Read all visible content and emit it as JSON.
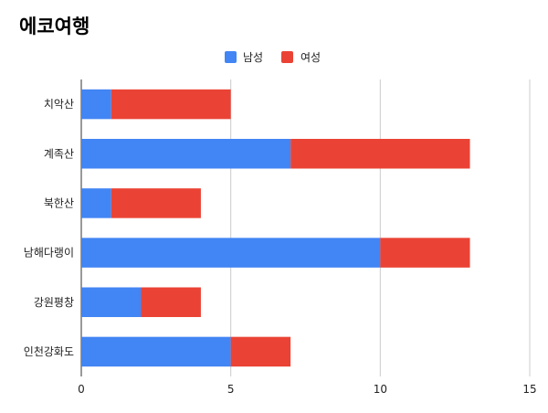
{
  "chart_data": {
    "type": "bar",
    "orientation": "horizontal",
    "stacked": true,
    "title": "에코여행",
    "xlabel": "",
    "ylabel": "",
    "categories": [
      "치악산",
      "계족산",
      "북한산",
      "남해다랭이",
      "강원평창",
      "인천강화도"
    ],
    "series": [
      {
        "name": "남성",
        "color": "#4285f4",
        "values": [
          1,
          7,
          1,
          10,
          2,
          5
        ]
      },
      {
        "name": "여성",
        "color": "#ea4335",
        "values": [
          4,
          6,
          3,
          3,
          2,
          2
        ]
      }
    ],
    "xlim": [
      0,
      15
    ],
    "x_ticks": [
      0,
      5,
      10,
      15
    ],
    "grid": true,
    "legend_position": "top"
  }
}
